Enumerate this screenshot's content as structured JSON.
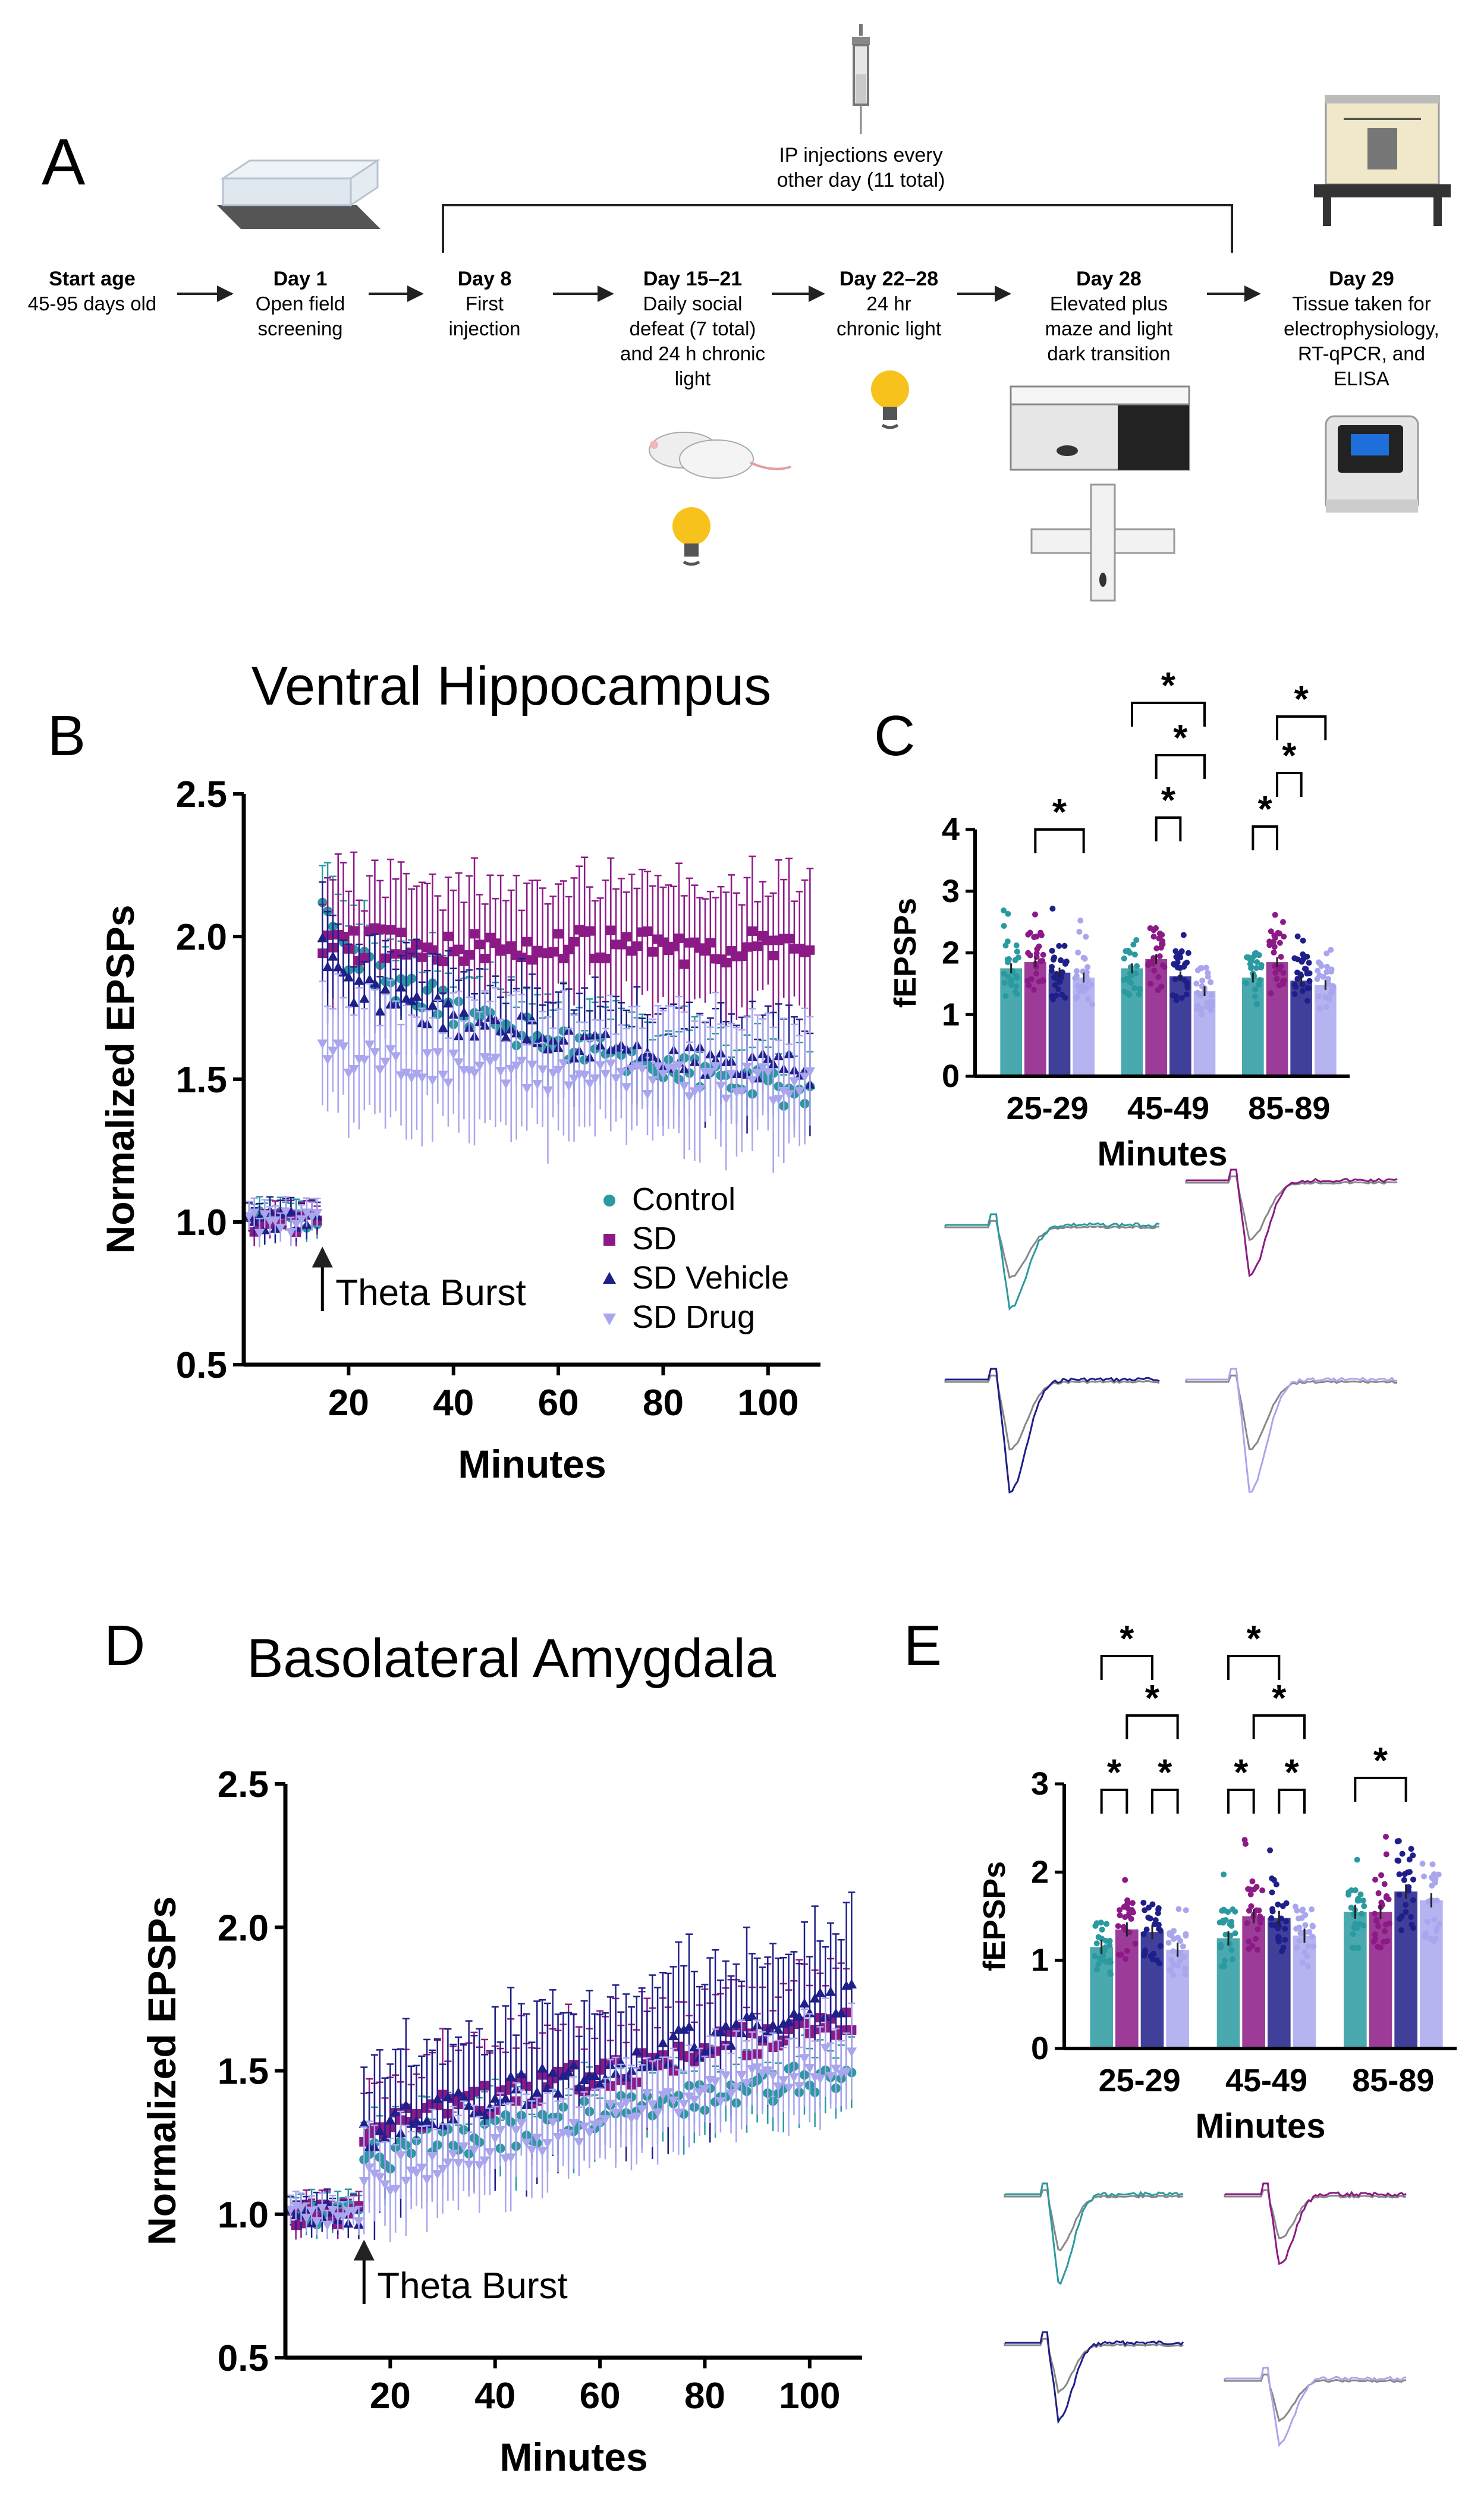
{
  "colors": {
    "control": "#2a9aa0",
    "sd": "#8b1a86",
    "sd_vehicle": "#1f1f8a",
    "sd_drug": "#a9a6ee",
    "neutral": "#8a8a8a",
    "axis": "#000000"
  },
  "panel_a": {
    "letter": "A",
    "injection_note": "IP injections every other day (11 total)",
    "steps": [
      {
        "title": "Start age",
        "desc": "45-95 days old"
      },
      {
        "title": "Day 1",
        "desc": "Open field screening"
      },
      {
        "title": "Day 8",
        "desc": "First injection"
      },
      {
        "title": "Day 15–21",
        "desc": "Daily social defeat (7 total) and 24 h chronic light"
      },
      {
        "title": "Day 22–28",
        "desc": "24 hr chronic light"
      },
      {
        "title": "Day 28",
        "desc": "Elevated plus maze and light dark transition"
      },
      {
        "title": "Day 29",
        "desc": "Tissue taken for electrophysiology, RT-qPCR, and ELISA"
      }
    ]
  },
  "chart_data": [
    {
      "id": "B",
      "type": "scatter",
      "letter": "B",
      "title": "Ventral Hippocampus",
      "xlabel": "Minutes",
      "ylabel": "Normalized EPSPs",
      "xlim": [
        0,
        110
      ],
      "ylim": [
        0.5,
        2.5
      ],
      "xticks": [
        "20",
        "40",
        "60",
        "80",
        "100"
      ],
      "yticks": [
        "0.5",
        "1.0",
        "1.5",
        "2.0",
        "2.5"
      ],
      "annotation": "Theta Burst",
      "annotation_x": 15,
      "legend": [
        "Control",
        "SD",
        "SD Vehicle",
        "SD Drug"
      ],
      "series": [
        {
          "name": "Control",
          "key": "control",
          "marker": "circle",
          "baseline": 1.0,
          "peak": 2.12,
          "end": 1.45,
          "err": 0.14
        },
        {
          "name": "SD",
          "key": "sd",
          "marker": "square",
          "baseline": 1.0,
          "peak": 1.98,
          "end": 1.96,
          "err": 0.22
        },
        {
          "name": "SD Vehicle",
          "key": "sd_vehicle",
          "marker": "triangle",
          "baseline": 1.0,
          "peak": 1.95,
          "end": 1.52,
          "err": 0.16
        },
        {
          "name": "SD Drug",
          "key": "sd_drug",
          "marker": "triangle-down",
          "baseline": 1.0,
          "peak": 1.62,
          "end": 1.48,
          "err": 0.2
        }
      ]
    },
    {
      "id": "C",
      "type": "bar",
      "letter": "C",
      "xlabel": "Minutes",
      "ylabel": "fEPSPs",
      "ylim": [
        0,
        4
      ],
      "yticks": [
        "0",
        "1",
        "2",
        "3",
        "4"
      ],
      "categories": [
        "25-29",
        "45-49",
        "85-89"
      ],
      "series": [
        {
          "name": "Control",
          "key": "control",
          "values": [
            1.75,
            1.75,
            1.6
          ]
        },
        {
          "name": "SD",
          "key": "sd",
          "values": [
            1.85,
            1.9,
            1.85
          ]
        },
        {
          "name": "SD Vehicle",
          "key": "sd_vehicle",
          "values": [
            1.68,
            1.62,
            1.55
          ]
        },
        {
          "name": "SD Drug",
          "key": "sd_drug",
          "values": [
            1.6,
            1.38,
            1.48
          ]
        }
      ],
      "significance": [
        "*",
        "*",
        "*",
        "*",
        "*",
        "*",
        "*"
      ]
    },
    {
      "id": "D",
      "type": "scatter",
      "letter": "D",
      "title": "Basolateral Amygdala",
      "xlabel": "Minutes",
      "ylabel": "Normalized EPSPs",
      "xlim": [
        0,
        110
      ],
      "ylim": [
        0.5,
        2.5
      ],
      "xticks": [
        "20",
        "40",
        "60",
        "80",
        "100"
      ],
      "yticks": [
        "0.5",
        "1.0",
        "1.5",
        "2.0",
        "2.5"
      ],
      "annotation": "Theta Burst",
      "annotation_x": 15,
      "series": [
        {
          "name": "Control",
          "key": "control",
          "marker": "circle",
          "baseline": 1.0,
          "peak": 1.2,
          "end": 1.5,
          "err": 0.12
        },
        {
          "name": "SD",
          "key": "sd",
          "marker": "square",
          "baseline": 1.0,
          "peak": 1.3,
          "end": 1.68,
          "err": 0.18
        },
        {
          "name": "SD Vehicle",
          "key": "sd_vehicle",
          "marker": "triangle",
          "baseline": 1.0,
          "peak": 1.28,
          "end": 1.75,
          "err": 0.25
        },
        {
          "name": "SD Drug",
          "key": "sd_drug",
          "marker": "triangle-down",
          "baseline": 1.0,
          "peak": 1.12,
          "end": 1.55,
          "err": 0.15
        }
      ]
    },
    {
      "id": "E",
      "type": "bar",
      "letter": "E",
      "xlabel": "Minutes",
      "ylabel": "fEPSPs",
      "ylim": [
        0,
        3
      ],
      "yticks": [
        "0",
        "1",
        "2",
        "3"
      ],
      "categories": [
        "25-29",
        "45-49",
        "85-89"
      ],
      "series": [
        {
          "name": "Control",
          "key": "control",
          "values": [
            1.15,
            1.25,
            1.55
          ]
        },
        {
          "name": "SD",
          "key": "sd",
          "values": [
            1.35,
            1.5,
            1.55
          ]
        },
        {
          "name": "SD Vehicle",
          "key": "sd_vehicle",
          "values": [
            1.32,
            1.48,
            1.78
          ]
        },
        {
          "name": "SD Drug",
          "key": "sd_drug",
          "values": [
            1.12,
            1.28,
            1.68
          ]
        }
      ],
      "significance": [
        "*",
        "*",
        "*",
        "*",
        "*",
        "*",
        "*",
        "*",
        "*"
      ]
    }
  ]
}
